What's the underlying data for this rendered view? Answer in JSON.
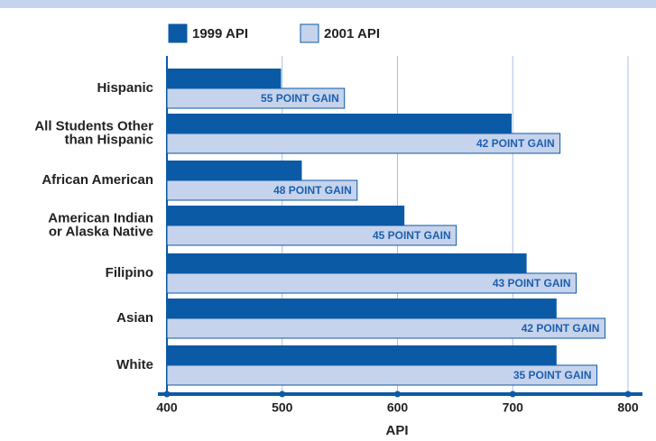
{
  "chart_data": {
    "type": "hbar",
    "xlabel": "API",
    "categories": [
      "Hispanic",
      [
        "All Students Other",
        "than Hispanic"
      ],
      "African American",
      [
        "American Indian",
        "or Alaska Native"
      ],
      "Filipino",
      "Asian",
      "White"
    ],
    "series": [
      {
        "name": "1999 API",
        "color": "#0b5aa6",
        "values": [
          499,
          699,
          517,
          606,
          712,
          738,
          738
        ]
      },
      {
        "name": "2001 API",
        "color": "#c6d3ec",
        "values": [
          554,
          741,
          565,
          651,
          755,
          780,
          773
        ]
      }
    ],
    "annotations": [
      "55 POINT GAIN",
      "42 POINT GAIN",
      "48 POINT GAIN",
      "45 POINT GAIN",
      "43 POINT GAIN",
      "42 POINT GAIN",
      "35 POINT GAIN"
    ],
    "xlim": [
      400,
      800
    ],
    "xticks": [
      400,
      500,
      600,
      700,
      800
    ],
    "grid": true
  }
}
